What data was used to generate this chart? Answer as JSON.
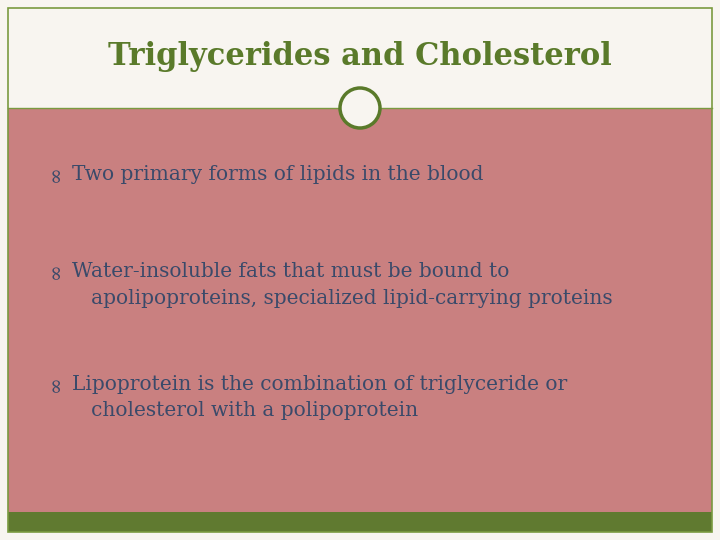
{
  "title": "Triglycerides and Cholesterol",
  "title_color": "#5a7a2a",
  "title_fontsize": 22,
  "title_bg_color": "#f8f5f0",
  "body_bg_color": "#c98080",
  "footer_bg_color": "#607a30",
  "border_color": "#7a9a40",
  "circle_edge_color": "#5a7a2a",
  "circle_bg": "#f8f5f0",
  "text_color": "#3a4a6a",
  "bullet_items": [
    "Two primary forms of lipids in the blood",
    "Water-insoluble fats that must be bound to\n   apolipoproteins, specialized lipid-carrying proteins",
    "Lipoprotein is the combination of triglyceride or\n   cholesterol with a polipoprotein"
  ],
  "figsize": [
    7.2,
    5.4
  ],
  "dpi": 100
}
